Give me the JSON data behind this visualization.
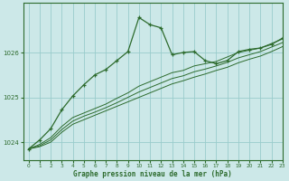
{
  "background_color": "#cce8e8",
  "grid_color": "#99cccc",
  "line_color": "#2d6b2d",
  "title": "Graphe pression niveau de la mer (hPa)",
  "xlim": [
    -0.5,
    23
  ],
  "ylim": [
    1023.6,
    1027.1
  ],
  "yticks": [
    1024,
    1025,
    1026
  ],
  "xticks": [
    0,
    1,
    2,
    3,
    4,
    5,
    6,
    7,
    8,
    9,
    10,
    11,
    12,
    13,
    14,
    15,
    16,
    17,
    18,
    19,
    20,
    21,
    22,
    23
  ],
  "line1_x": [
    0,
    1,
    2,
    3,
    4,
    5,
    6,
    7,
    8,
    9,
    10,
    11,
    12,
    13,
    14,
    15,
    16,
    17,
    18,
    19,
    20,
    21,
    22,
    23
  ],
  "line1_y": [
    1023.85,
    1023.95,
    1024.1,
    1024.35,
    1024.55,
    1024.65,
    1024.75,
    1024.85,
    1024.98,
    1025.1,
    1025.25,
    1025.35,
    1025.45,
    1025.55,
    1025.6,
    1025.7,
    1025.75,
    1025.8,
    1025.9,
    1026.0,
    1026.05,
    1026.1,
    1026.2,
    1026.3
  ],
  "line2_x": [
    0,
    1,
    2,
    3,
    4,
    5,
    6,
    7,
    8,
    9,
    10,
    11,
    12,
    13,
    14,
    15,
    16,
    17,
    18,
    19,
    20,
    21,
    22,
    23
  ],
  "line2_y": [
    1023.85,
    1023.92,
    1024.05,
    1024.28,
    1024.47,
    1024.58,
    1024.67,
    1024.77,
    1024.88,
    1025.0,
    1025.12,
    1025.22,
    1025.32,
    1025.42,
    1025.48,
    1025.57,
    1025.63,
    1025.7,
    1025.78,
    1025.88,
    1025.95,
    1026.02,
    1026.12,
    1026.22
  ],
  "line3_x": [
    0,
    1,
    2,
    3,
    4,
    5,
    6,
    7,
    8,
    9,
    10,
    11,
    12,
    13,
    14,
    15,
    16,
    17,
    18,
    19,
    20,
    21,
    22,
    23
  ],
  "line3_y": [
    1023.85,
    1023.9,
    1024.0,
    1024.22,
    1024.4,
    1024.5,
    1024.6,
    1024.7,
    1024.8,
    1024.9,
    1025.0,
    1025.1,
    1025.2,
    1025.3,
    1025.37,
    1025.45,
    1025.52,
    1025.6,
    1025.67,
    1025.77,
    1025.85,
    1025.92,
    1026.02,
    1026.13
  ],
  "main_x": [
    0,
    1,
    2,
    3,
    4,
    5,
    6,
    7,
    8,
    9,
    10,
    11,
    12,
    13,
    14,
    15,
    16,
    17,
    18,
    19,
    20,
    21,
    22,
    23
  ],
  "main_y": [
    1023.85,
    1024.05,
    1024.3,
    1024.72,
    1025.03,
    1025.28,
    1025.5,
    1025.62,
    1025.82,
    1026.02,
    1026.78,
    1026.62,
    1026.55,
    1025.95,
    1026.0,
    1026.02,
    1025.82,
    1025.75,
    1025.82,
    1026.02,
    1026.07,
    1026.1,
    1026.18,
    1026.32
  ]
}
